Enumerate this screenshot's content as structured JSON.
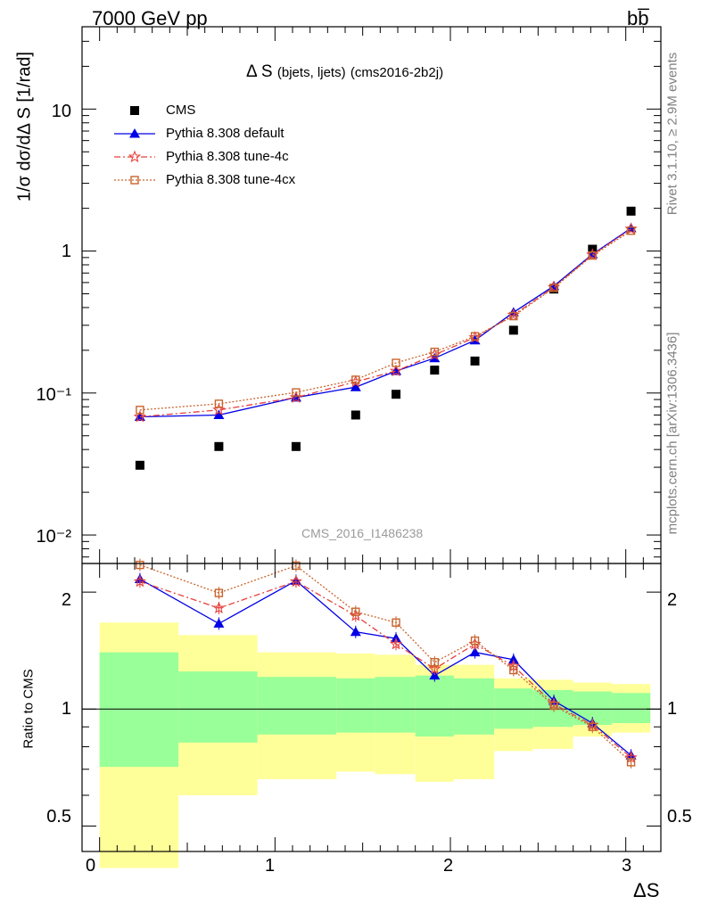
{
  "header": {
    "left": "7000 GeV pp",
    "right": "bb̅"
  },
  "side_text": {
    "rivet": "Rivet 3.1.10, ≥ 2.9M events",
    "mcplots": "mcplots.cern.ch [arXiv:1306.3436]"
  },
  "watermark": "CMS_2016_I1486238",
  "colors": {
    "cms": "#000000",
    "default": "#0000e6",
    "tune4c": "#e6403c",
    "tune4cx": "#c8642d",
    "band_inner": "#99ff99",
    "band_outer": "#ffff99"
  },
  "chart_data": [
    {
      "type": "scatter",
      "title": "Δ S",
      "title_detail": "(bjets, ljets)",
      "title_tag": "(cms2016-2b2j)",
      "ylabel": "1/σ dσ/dΔ S [1/rad]",
      "xlabel": "",
      "y_scale": "log",
      "ylim": [
        0.0063,
        38
      ],
      "xlim": [
        -0.1,
        3.2
      ],
      "y_ticks": [
        {
          "value": 0.01,
          "label": "10⁻²"
        },
        {
          "value": 0.1,
          "label": "10⁻¹"
        },
        {
          "value": 1,
          "label": "1"
        },
        {
          "value": 10,
          "label": "10"
        }
      ],
      "legend_position": "top-left",
      "x": [
        0.23,
        0.68,
        1.12,
        1.46,
        1.69,
        1.91,
        2.14,
        2.36,
        2.59,
        2.81,
        3.03
      ],
      "series": [
        {
          "name": "CMS",
          "marker": "square-filled",
          "values": [
            0.031,
            0.042,
            0.042,
            0.07,
            0.098,
            0.145,
            0.168,
            0.277,
            0.54,
            1.03,
            1.91
          ]
        },
        {
          "name": "Pythia 8.308 default",
          "marker": "triangle",
          "values": [
            0.068,
            0.07,
            0.093,
            0.11,
            0.143,
            0.176,
            0.235,
            0.37,
            0.567,
            0.95,
            1.45
          ]
        },
        {
          "name": "Pythia 8.308 tune-4c",
          "marker": "star",
          "values": [
            0.068,
            0.076,
            0.093,
            0.12,
            0.143,
            0.186,
            0.246,
            0.355,
            0.556,
            0.94,
            1.43
          ]
        },
        {
          "name": "Pythia 8.308 tune-4cx",
          "marker": "square-open",
          "values": [
            0.076,
            0.084,
            0.101,
            0.124,
            0.163,
            0.195,
            0.251,
            0.348,
            0.551,
            0.93,
            1.39
          ]
        }
      ]
    },
    {
      "type": "line",
      "ylabel": "Ratio to CMS",
      "xlabel": "ΔS",
      "y_scale": "log",
      "ylim": [
        0.43,
        2.37
      ],
      "xlim": [
        -0.1,
        3.2
      ],
      "x_ticks": [
        0,
        1,
        2,
        3
      ],
      "y_ticks": [
        {
          "value": 0.5,
          "label": "0.5"
        },
        {
          "value": 1,
          "label": "1"
        },
        {
          "value": 2,
          "label": "2"
        }
      ],
      "bins": [
        0,
        0.45,
        0.9,
        1.35,
        1.57,
        1.8,
        2.02,
        2.25,
        2.47,
        2.7,
        2.92,
        3.14
      ],
      "band_inner": {
        "low": [
          0.71,
          0.82,
          0.86,
          0.87,
          0.87,
          0.85,
          0.86,
          0.89,
          0.9,
          0.91,
          0.92
        ],
        "high": [
          1.4,
          1.25,
          1.21,
          1.2,
          1.21,
          1.22,
          1.2,
          1.13,
          1.12,
          1.11,
          1.1
        ]
      },
      "band_outer": {
        "low": [
          0.39,
          0.6,
          0.66,
          0.69,
          0.68,
          0.65,
          0.66,
          0.78,
          0.79,
          0.85,
          0.87
        ],
        "high": [
          1.67,
          1.55,
          1.4,
          1.39,
          1.38,
          1.3,
          1.3,
          1.2,
          1.19,
          1.17,
          1.16
        ]
      },
      "x": [
        0.23,
        0.68,
        1.12,
        1.46,
        1.69,
        1.91,
        2.14,
        2.36,
        2.59,
        2.81,
        3.03
      ],
      "series": [
        {
          "name": "Pythia 8.308 default",
          "values": [
            2.16,
            1.66,
            2.14,
            1.58,
            1.52,
            1.22,
            1.4,
            1.34,
            1.05,
            0.92,
            0.76
          ]
        },
        {
          "name": "Pythia 8.308 tune-4c",
          "values": [
            2.13,
            1.82,
            2.13,
            1.74,
            1.47,
            1.27,
            1.47,
            1.29,
            1.03,
            0.91,
            0.75
          ]
        },
        {
          "name": "Pythia 8.308 tune-4cx",
          "values": [
            2.35,
            1.99,
            2.34,
            1.78,
            1.67,
            1.32,
            1.5,
            1.26,
            1.02,
            0.9,
            0.73
          ]
        }
      ]
    }
  ]
}
